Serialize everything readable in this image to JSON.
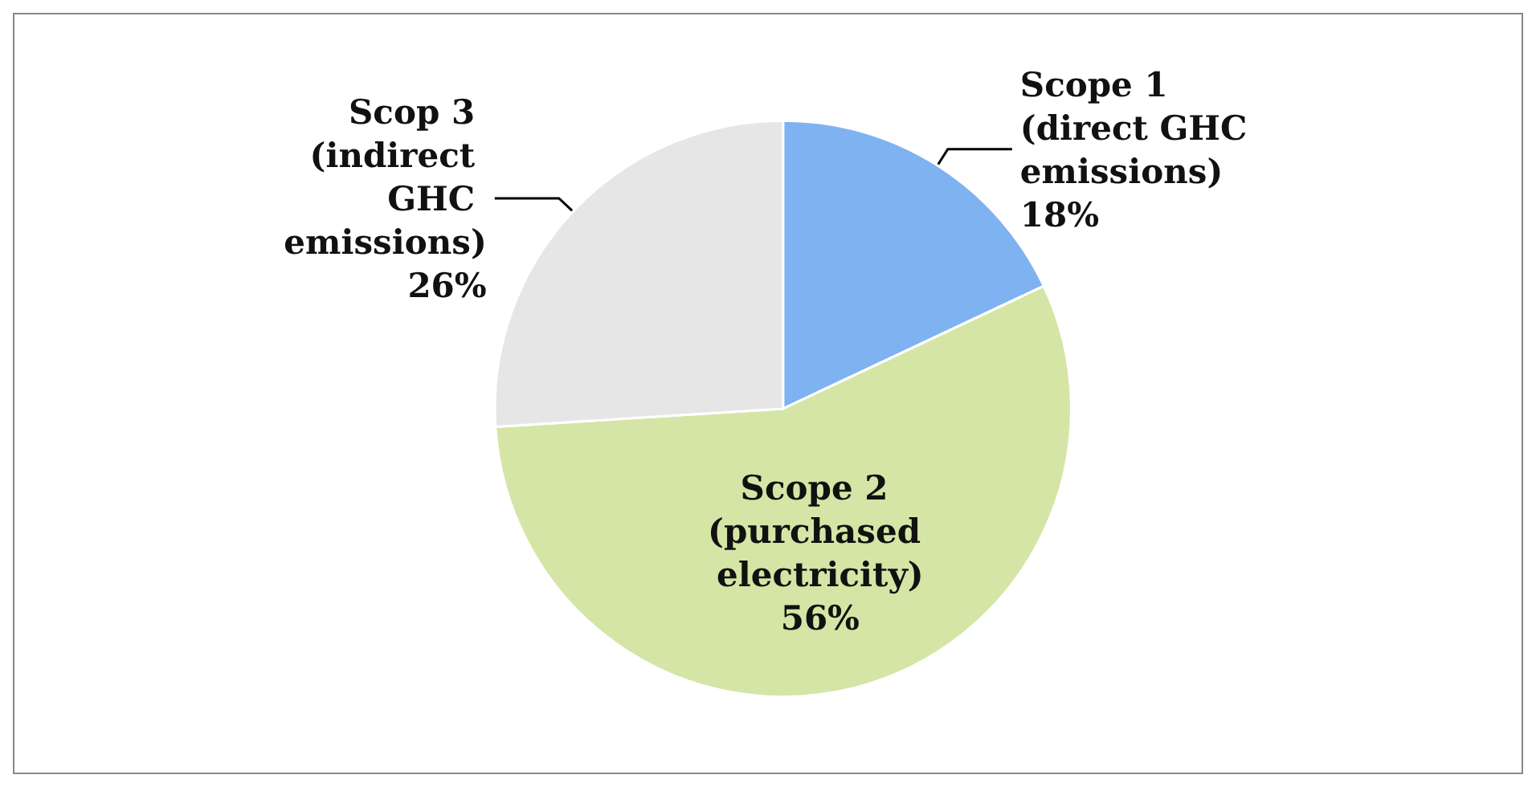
{
  "chart_data": {
    "type": "pie",
    "categories": [
      "Scope 1 (direct GHC emissions)",
      "Scope 2 (purchased electricity)",
      "Scop 3 (indirect GHC emissions)"
    ],
    "values": [
      18,
      56,
      26
    ],
    "value_labels": [
      "18%",
      "56%",
      "26%"
    ],
    "colors": [
      "#7fb2f0",
      "#d5e5a5",
      "#e6e6e6"
    ],
    "legend": false
  }
}
